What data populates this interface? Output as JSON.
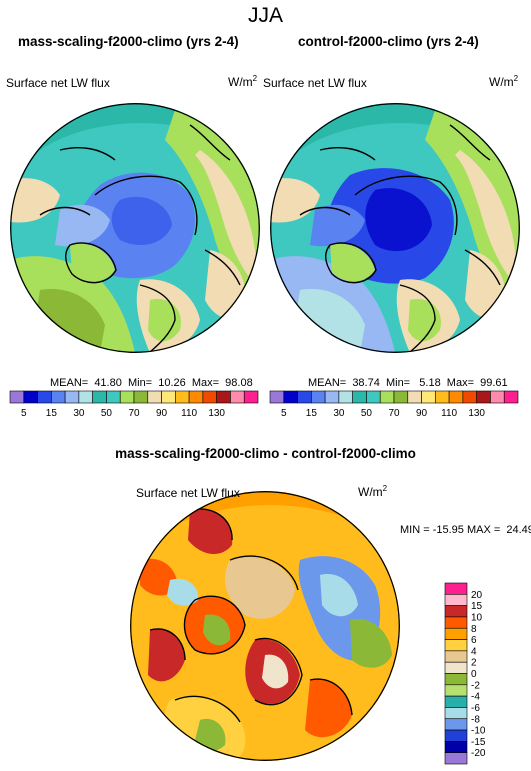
{
  "title": "JJA",
  "panels": [
    {
      "title": "mass-scaling-f2000-climo (yrs 2-4)",
      "variable": "Surface net LW flux",
      "units_base": "W/m",
      "units_exp": "2",
      "stats": "MEAN=  41.80  Min=  10.26  Max=  98.08",
      "colorbar": {
        "ticks": [
          "5",
          "15",
          "30",
          "50",
          "70",
          "90",
          "110",
          "130"
        ],
        "colors": [
          "#9a78d8",
          "#0000c8",
          "#2848e8",
          "#5a82f0",
          "#98b8f4",
          "#b2e2e6",
          "#2cb8a8",
          "#3ec8c0",
          "#a8e05c",
          "#8cb838",
          "#f2dcb4",
          "#ffe878",
          "#ffbc1c",
          "#ff8a00",
          "#f04a00",
          "#a81818",
          "#ff8cac",
          "#ff2090"
        ]
      }
    },
    {
      "title": "control-f2000-climo (yrs 2-4)",
      "variable": "Surface net LW flux",
      "units_base": "W/m",
      "units_exp": "2",
      "stats": "MEAN=  38.74  Min=   5.18  Max=  99.61",
      "colorbar": {
        "ticks": [
          "5",
          "15",
          "30",
          "50",
          "70",
          "90",
          "110",
          "130"
        ],
        "colors": [
          "#9a78d8",
          "#0000c8",
          "#2848e8",
          "#5a82f0",
          "#98b8f4",
          "#b2e2e6",
          "#2cb8a8",
          "#3ec8c0",
          "#a8e05c",
          "#8cb838",
          "#f2dcb4",
          "#ffe878",
          "#ffbc1c",
          "#ff8a00",
          "#f04a00",
          "#a81818",
          "#ff8cac",
          "#ff2090"
        ]
      }
    }
  ],
  "diff_panel": {
    "title": "mass-scaling-f2000-climo - control-f2000-climo",
    "variable": "Surface net LW flux",
    "units_base": "W/m",
    "units_exp": "2",
    "stats": "MIN = -15.95 MAX =  24.49",
    "colorbar": {
      "ticks": [
        "20",
        "15",
        "10",
        "8",
        "6",
        "4",
        "2",
        "0",
        "-2",
        "-4",
        "-6",
        "-8",
        "-10",
        "-15",
        "-20"
      ],
      "colors": [
        "#ff2090",
        "#ffb8cc",
        "#c82828",
        "#ff5a00",
        "#ffa000",
        "#ffd040",
        "#e8c890",
        "#f0e4cc",
        "#8cb838",
        "#b8e070",
        "#28b0a8",
        "#a8dce8",
        "#6c98ec",
        "#2040d8",
        "#0000a8",
        "#9a78d8"
      ]
    }
  },
  "colors": {
    "ocean_high": "#3ec8c0",
    "arctic_low": "#5a82f0",
    "arctic_lowest": "#2848e8",
    "land_mid": "#a8e05c",
    "land_high": "#f2dcb4",
    "diff_bg": "#ffbc1c"
  }
}
